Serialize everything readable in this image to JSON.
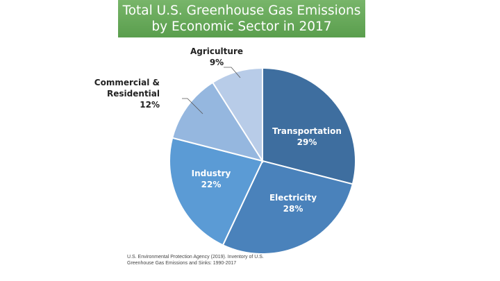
{
  "chart_data": {
    "type": "pie",
    "title": [
      "Total U.S. Greenhouse Gas Emissions",
      "by Economic Sector in 2017"
    ],
    "slices": [
      {
        "label": [
          "Transportation"
        ],
        "pct_text": "29%",
        "value": 29,
        "color": "#3e6e9f",
        "text_color": "#ffffff",
        "label_position": "inside"
      },
      {
        "label": [
          "Electricity"
        ],
        "pct_text": "28%",
        "value": 28,
        "color": "#4a82bb",
        "text_color": "#ffffff",
        "label_position": "inside"
      },
      {
        "label": [
          "Industry"
        ],
        "pct_text": "22%",
        "value": 22,
        "color": "#5b9bd5",
        "text_color": "#ffffff",
        "label_position": "inside"
      },
      {
        "label": [
          "Commercial &",
          "Residential"
        ],
        "pct_text": "12%",
        "value": 12,
        "color": "#95b7df",
        "text_color": "#222222",
        "label_position": "outside"
      },
      {
        "label": [
          "Agriculture"
        ],
        "pct_text": "9%",
        "value": 9,
        "color": "#b8cce8",
        "text_color": "#222222",
        "label_position": "outside"
      }
    ]
  },
  "source": [
    "U.S. Environmental Protection Agency (2019). Inventory of U.S.",
    "Greenhouse Gas Emissions and Sinks: 1990-2017"
  ]
}
